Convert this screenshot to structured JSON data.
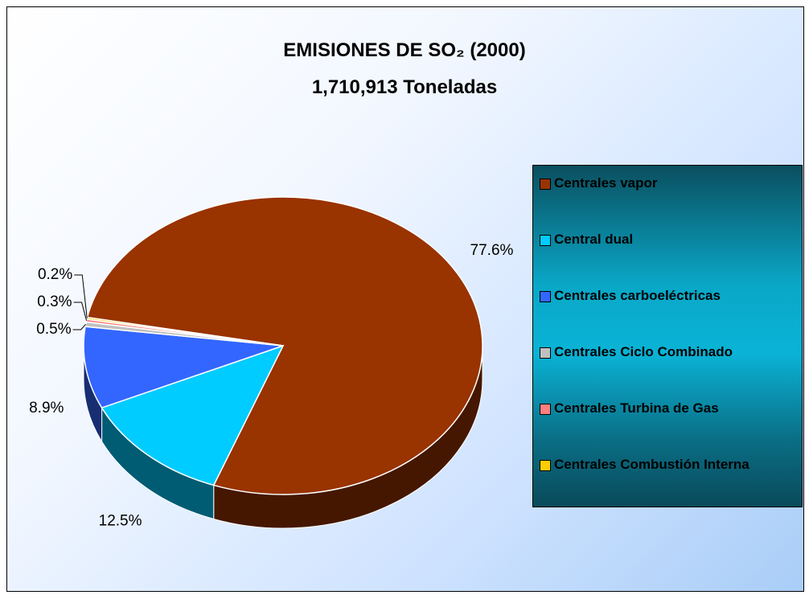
{
  "chart_data": {
    "type": "pie",
    "title": "EMISIONES DE SO₂ (2000)",
    "subtitle": "1,710,913 Toneladas",
    "categories": [
      "Centrales vapor",
      "Central dual",
      "Centrales carboeléctricas",
      "Centrales Ciclo Combinado",
      "Centrales Turbina de Gas",
      "Centrales Combustión Interna"
    ],
    "values": [
      77.6,
      12.5,
      8.9,
      0.5,
      0.3,
      0.2
    ],
    "value_labels": [
      "77.6%",
      "12.5%",
      "8.9%",
      "0.5%",
      "0.3%",
      "0.2%"
    ],
    "colors": [
      "#993300",
      "#00ccff",
      "#3366ff",
      "#c0c0c0",
      "#ff8080",
      "#ffcc00"
    ],
    "legend": "right"
  }
}
